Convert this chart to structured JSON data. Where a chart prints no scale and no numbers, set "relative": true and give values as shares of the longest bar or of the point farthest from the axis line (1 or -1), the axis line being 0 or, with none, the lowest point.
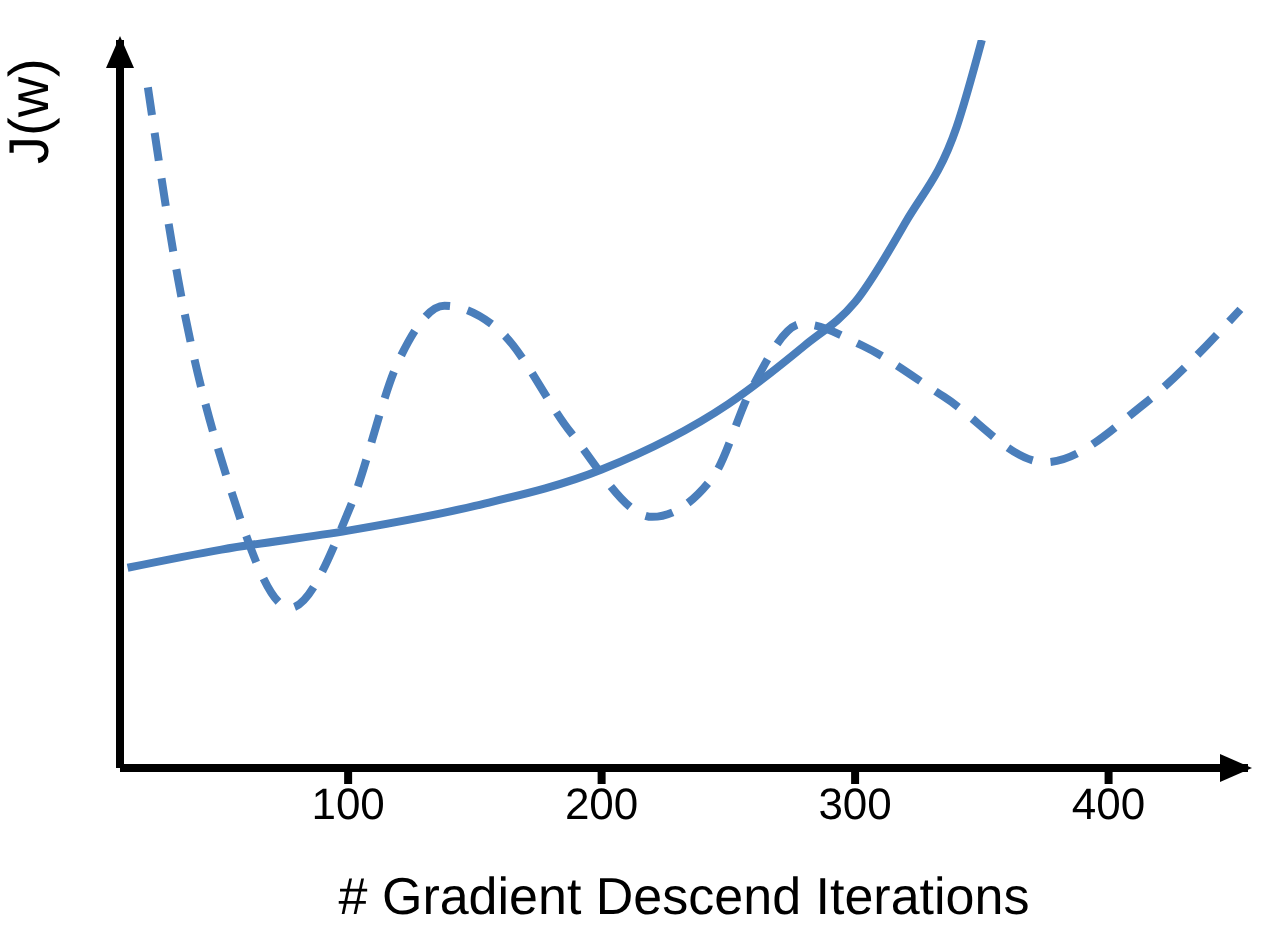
{
  "chart_data": {
    "type": "line",
    "xlabel": "# Gradient Descend Iterations",
    "ylabel": "J(w)",
    "relative": true,
    "xlim": [
      10,
      455
    ],
    "xticks": [
      100,
      200,
      300,
      400
    ],
    "marker": "none",
    "series": [
      {
        "color": "#4a7ebb",
        "line_style": "solid",
        "x": [
          13,
          50,
          100,
          150,
          200,
          250,
          280,
          300,
          320,
          340,
          350
        ],
        "values": [
          0.275,
          0.3,
          0.326,
          0.36,
          0.41,
          0.5,
          0.58,
          0.64,
          0.75,
          0.88,
          1.0
        ]
      },
      {
        "color": "#4a7ebb",
        "line_style": "dashed",
        "x": [
          21,
          33,
          53,
          77,
          101,
          120,
          138,
          160,
          188,
          220,
          244,
          259,
          279,
          303,
          335,
          375,
          414,
          452
        ],
        "values": [
          0.935,
          0.67,
          0.39,
          0.22,
          0.36,
          0.56,
          0.635,
          0.6,
          0.46,
          0.345,
          0.4,
          0.52,
          0.61,
          0.58,
          0.51,
          0.42,
          0.5,
          0.63
        ]
      }
    ]
  }
}
